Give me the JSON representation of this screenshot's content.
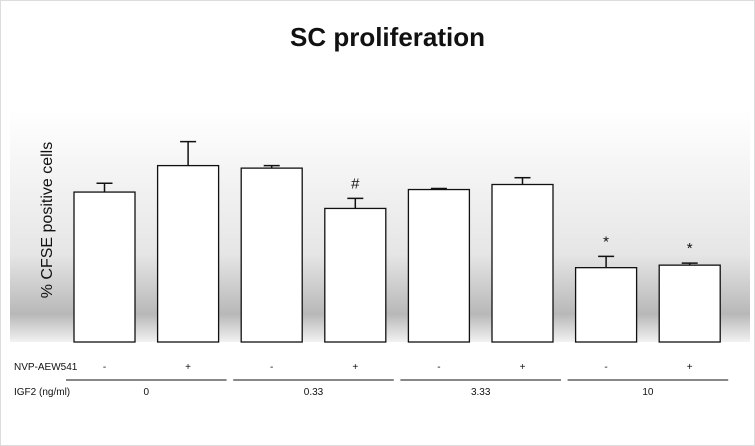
{
  "chart_data": {
    "type": "bar",
    "title": "SC proliferation",
    "ylabel": "% CFSE positive cells",
    "xlabel": "",
    "ylim": [
      0,
      100
    ],
    "grid": false,
    "colors": {
      "bar_fill": "#ffffff",
      "bar_stroke": "#111111",
      "background_gradient": "#b8b8b8"
    },
    "row_labels": {
      "inhibitor": "NVP-AEW541",
      "dose": "IGF2 (ng/ml)"
    },
    "bars": [
      {
        "inhibitor": "-",
        "dose": "0",
        "value": 59.5,
        "error": 3.5,
        "annotation": ""
      },
      {
        "inhibitor": "+",
        "dose": "0",
        "value": 70.0,
        "error": 9.5,
        "annotation": ""
      },
      {
        "inhibitor": "-",
        "dose": "0.33",
        "value": 69.0,
        "error": 1.0,
        "annotation": ""
      },
      {
        "inhibitor": "+",
        "dose": "0.33",
        "value": 53.0,
        "error": 4.0,
        "annotation": "#"
      },
      {
        "inhibitor": "-",
        "dose": "3.33",
        "value": 60.5,
        "error": 0.4,
        "annotation": ""
      },
      {
        "inhibitor": "+",
        "dose": "3.33",
        "value": 62.5,
        "error": 2.7,
        "annotation": ""
      },
      {
        "inhibitor": "-",
        "dose": "10",
        "value": 29.5,
        "error": 4.5,
        "annotation": "*"
      },
      {
        "inhibitor": "+",
        "dose": "10",
        "value": 30.5,
        "error": 0.8,
        "annotation": "*"
      }
    ],
    "groups": [
      "0",
      "0.33",
      "3.33",
      "10"
    ]
  }
}
